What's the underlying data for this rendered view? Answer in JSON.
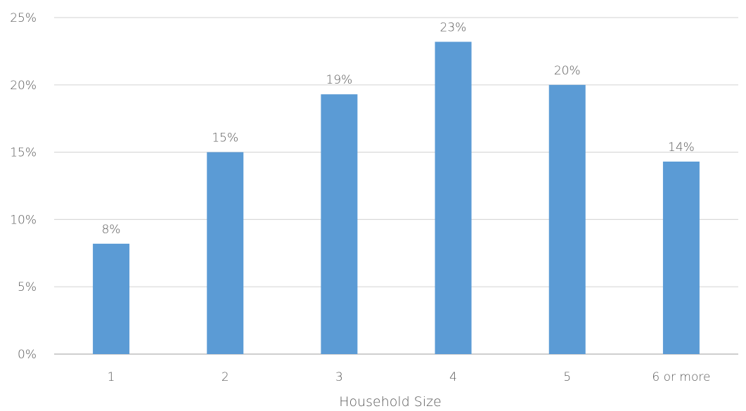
{
  "chart_data": {
    "type": "bar",
    "title": "",
    "xlabel": "Household Size",
    "ylabel": "",
    "categories": [
      "1",
      "2",
      "3",
      "4",
      "5",
      "6 or more"
    ],
    "values": [
      8.2,
      15.0,
      19.3,
      23.2,
      20.0,
      14.3
    ],
    "data_labels": [
      "8%",
      "15%",
      "19%",
      "23%",
      "20%",
      "14%"
    ],
    "ylim": [
      0,
      25
    ],
    "yticks": [
      0,
      5,
      10,
      15,
      20,
      25
    ],
    "ytick_labels": [
      "0%",
      "5%",
      "10%",
      "15%",
      "20%",
      "25%"
    ],
    "grid": true,
    "legend": "none",
    "colors": {
      "bar": "#5B9BD5",
      "grid": "#D9D9D9",
      "axis": "#BFBFBF",
      "text": "#595959"
    }
  }
}
